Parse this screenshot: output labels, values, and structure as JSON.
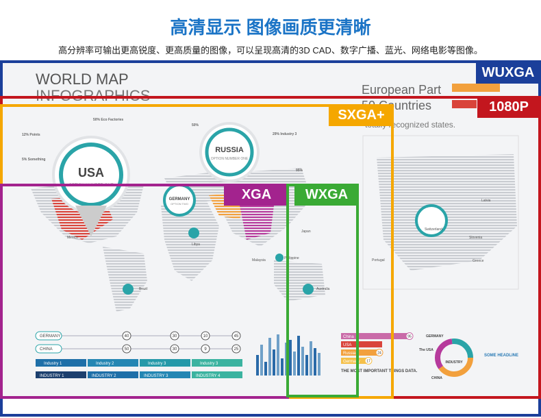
{
  "header": {
    "title": "高清显示 图像画质更清晰",
    "subtitle": "高分辨率可输出更高锐度、更高质量的图像，可以呈现高清的3D CAD、数字广播、蓝光、网络电影等图像。"
  },
  "frames": [
    "WUXGA",
    "1080P",
    "SXGA+",
    "XGA",
    "WXGA"
  ],
  "infographic": {
    "title": "WORLD MAP",
    "title2": "INFOGRAPHICS",
    "europe_title": "European Part",
    "europe_count": "50 Countries",
    "europe_sub": "totally recognized states.",
    "pins": [
      "USA",
      "RUSSIA",
      "GERMANY"
    ],
    "pin_subs": [
      "OPTION NUMBER ONE",
      "OPTION NUMBER ONE",
      "OPTION TWO"
    ],
    "notes": [
      "50% Eco Factories",
      "12% Points",
      "5% Something",
      "29% Industry 3",
      "50%",
      "95%"
    ],
    "places": [
      "Mexico",
      "Libya",
      "Brazil",
      "Malaysia",
      "Philippine",
      "Japan",
      "Australia",
      "Latvia",
      "Switzerland",
      "Slovenia",
      "Portugal",
      "Greece"
    ],
    "rows": [
      {
        "name": "GERMANY",
        "values": [
          40,
          30,
          10,
          45
        ]
      },
      {
        "name": "CHINA",
        "values": [
          50,
          30,
          9,
          25
        ]
      }
    ],
    "industries": [
      "Industry 1",
      "Industry 2",
      "Industry 3",
      "Industry 3"
    ],
    "industry_heads": [
      "INDUSTRY 1",
      "INDUSTRY 2",
      "INDUSTRY 3",
      "INDUSTRY 4"
    ],
    "ranking": [
      {
        "name": "China",
        "value": 95
      },
      {
        "name": "USA",
        "value": null
      },
      {
        "name": "Russia",
        "value": 24
      },
      {
        "name": "Germany",
        "value": 17
      }
    ],
    "ranking_title": "THE MOST IMPORTANT THINGS DATA.",
    "donut": {
      "center": "INDUSTRY",
      "labels": [
        "GERMANY",
        "The USA",
        "CHINA"
      ],
      "headline": "SOME HEADLINE"
    }
  }
}
